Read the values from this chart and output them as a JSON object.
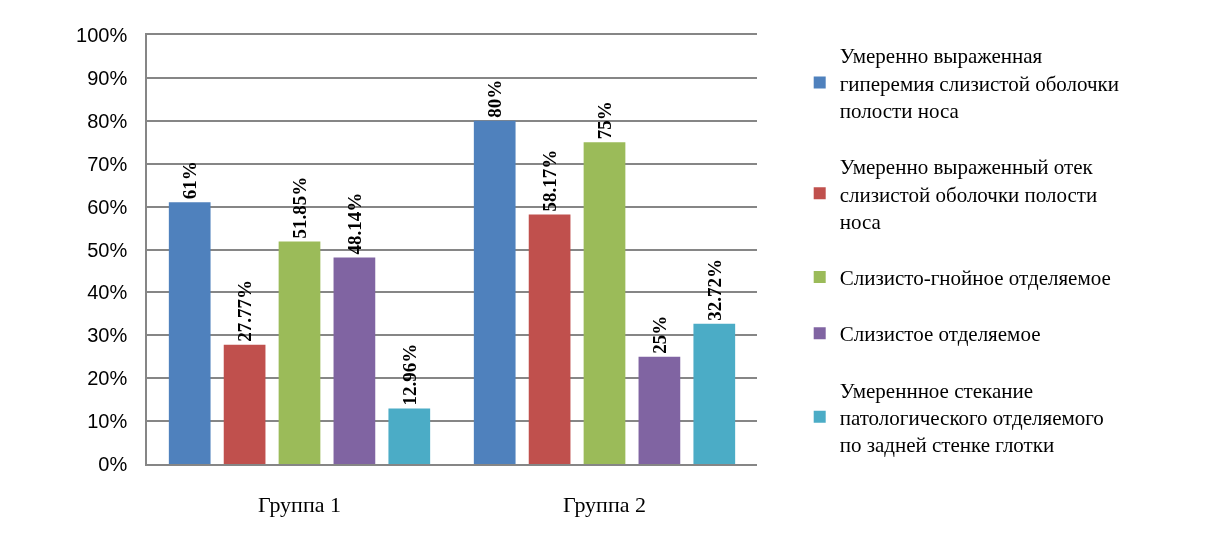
{
  "chart_data": {
    "type": "bar",
    "categories": [
      "Группа 1",
      "Группа 2"
    ],
    "series": [
      {
        "name": "Умеренно выраженная гиперемия слизистой оболочки полости носа",
        "color": "#4f81bd",
        "values": [
          61,
          80
        ],
        "value_labels": [
          "61%",
          "80%"
        ]
      },
      {
        "name": "Умеренно выраженный отек слизистой оболочки полости носа",
        "color": "#c0504d",
        "values": [
          27.77,
          58.17
        ],
        "value_labels": [
          "27.77%",
          "58.17%"
        ]
      },
      {
        "name": "Слизисто-гнойное отделяемое",
        "color": "#9bbb59",
        "values": [
          51.85,
          75
        ],
        "value_labels": [
          "51.85%",
          "75%"
        ]
      },
      {
        "name": "Слизистое отделяемое",
        "color": "#8064a2",
        "values": [
          48.14,
          25
        ],
        "value_labels": [
          "48.14%",
          "25%"
        ]
      },
      {
        "name": "Умереннное стекание патологического отделяемого по задней стенке глотки",
        "color": "#4bacc6",
        "values": [
          12.96,
          32.72
        ],
        "value_labels": [
          "12.96%",
          "32.72%"
        ]
      }
    ],
    "ylim": [
      0,
      100
    ],
    "yticks": [
      {
        "value": 0,
        "label": "0%"
      },
      {
        "value": 10,
        "label": "10%"
      },
      {
        "value": 20,
        "label": "20%"
      },
      {
        "value": 30,
        "label": "30%"
      },
      {
        "value": 40,
        "label": "40%"
      },
      {
        "value": 50,
        "label": "50%"
      },
      {
        "value": 60,
        "label": "60%"
      },
      {
        "value": 70,
        "label": "70%"
      },
      {
        "value": 80,
        "label": "80%"
      },
      {
        "value": 90,
        "label": "90%"
      },
      {
        "value": 100,
        "label": "100%"
      }
    ],
    "grid": "y",
    "legend": "right"
  }
}
